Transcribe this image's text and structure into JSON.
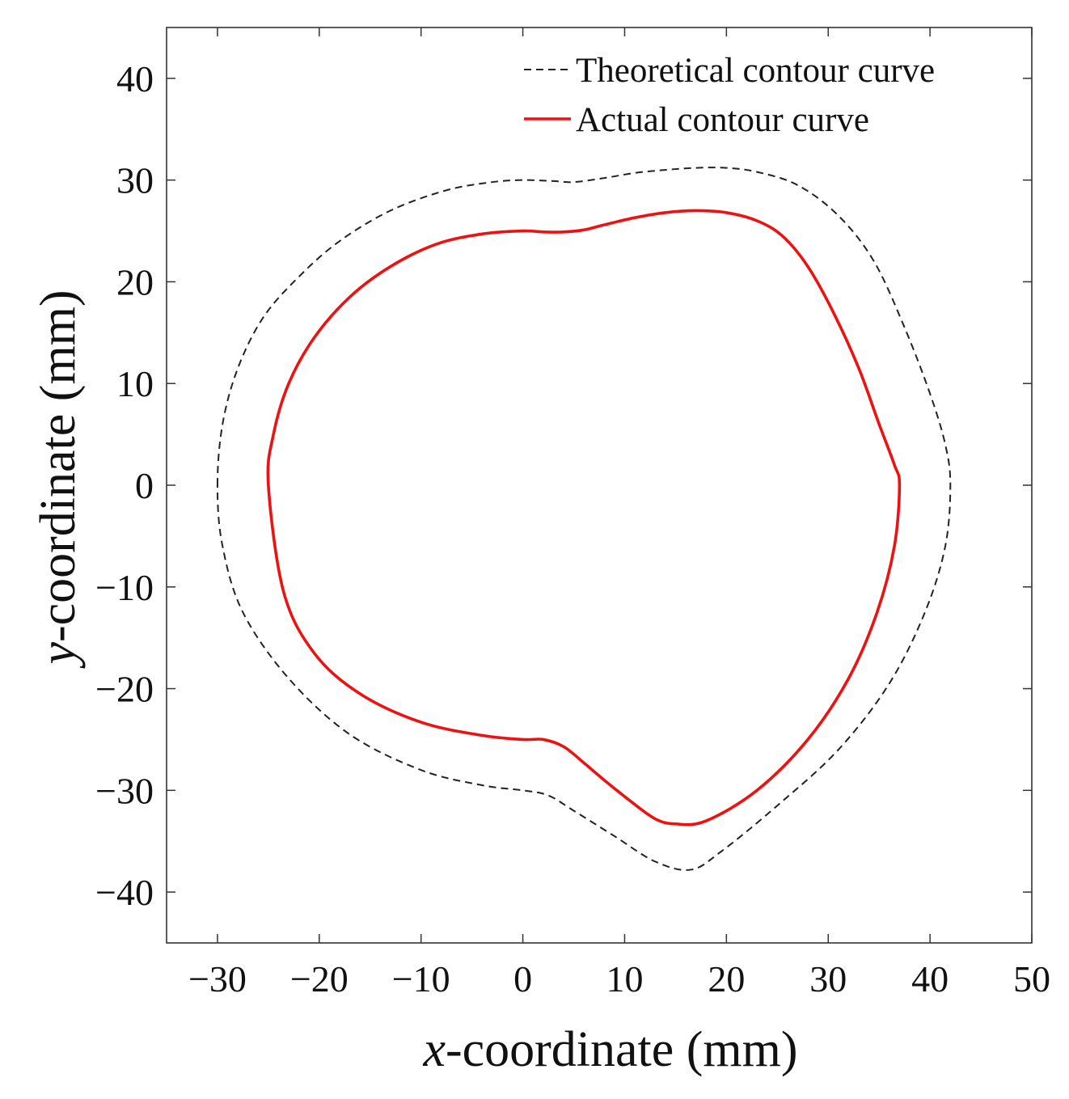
{
  "chart_data": {
    "type": "line",
    "title": "",
    "xlabel": "-coordinate (mm)",
    "xlabel_var": "x",
    "ylabel": "-coordinate (mm)",
    "ylabel_var": "y",
    "xlim": [
      -35,
      50
    ],
    "ylim": [
      -45,
      45
    ],
    "xticks": [
      -30,
      -20,
      -10,
      0,
      10,
      20,
      30,
      40,
      50
    ],
    "yticks": [
      40,
      30,
      20,
      10,
      0,
      -10,
      -20,
      -30,
      -40
    ],
    "xtick_labels": [
      "−30",
      "−20",
      "−10",
      "0",
      "10",
      "20",
      "30",
      "40",
      "50"
    ],
    "ytick_labels": [
      "40",
      "30",
      "20",
      "10",
      "0",
      "−10",
      "−20",
      "−30",
      "−40"
    ],
    "grid": false,
    "legend_position": "top-right",
    "series": [
      {
        "name": "Theoretical contour curve",
        "style": "dashed",
        "color": "#222222",
        "x": [
          -30,
          -29.5,
          -28,
          -25.5,
          -22,
          -18,
          -13,
          -7.5,
          -3,
          0,
          3,
          5,
          8,
          11,
          14,
          17,
          20,
          23,
          27,
          31,
          34.5,
          37.5,
          40,
          41.5,
          42,
          41.5,
          39.5,
          36,
          31,
          25,
          19.5,
          16.5,
          13,
          9,
          5,
          2.5,
          0,
          -4,
          -10,
          -17,
          -23,
          -27.5,
          -29.5,
          -30
        ],
        "y": [
          0,
          6,
          11.5,
          16.5,
          20.5,
          24,
          27,
          29,
          29.8,
          30,
          29.9,
          29.8,
          30.2,
          30.7,
          31,
          31.2,
          31.2,
          30.8,
          29.5,
          26.5,
          22,
          15.5,
          9,
          4,
          0,
          -6,
          -12.5,
          -19.5,
          -26,
          -31.5,
          -36,
          -37.8,
          -37,
          -34.5,
          -32,
          -30.5,
          -30,
          -29.5,
          -28,
          -24.5,
          -19,
          -12.5,
          -6,
          0
        ]
      },
      {
        "name": "Actual contour curve",
        "style": "solid",
        "color": "#ee1111",
        "x": [
          -25,
          -24.5,
          -23,
          -20.5,
          -17,
          -13,
          -8.5,
          -4,
          0,
          2,
          4,
          6,
          8,
          11,
          14,
          17,
          20,
          23,
          25.5,
          28,
          30.5,
          33,
          35,
          36.5,
          37,
          36.5,
          34.8,
          32,
          28,
          23,
          18,
          15,
          13,
          10.5,
          8,
          6,
          4,
          2,
          0,
          -4,
          -10,
          -16,
          -20.5,
          -23.5,
          -25
        ],
        "y": [
          0,
          5,
          10,
          14.5,
          18.5,
          21.5,
          23.7,
          24.7,
          25,
          24.9,
          24.9,
          25.1,
          25.6,
          26.3,
          26.8,
          27,
          26.8,
          26,
          24.5,
          21.5,
          17,
          11.5,
          6,
          2,
          0,
          -6,
          -12.5,
          -19,
          -25,
          -30,
          -33,
          -33.3,
          -32.8,
          -31,
          -29,
          -27.3,
          -25.7,
          -25,
          -25,
          -24.6,
          -23.3,
          -20.5,
          -16.5,
          -10.5,
          0
        ]
      }
    ]
  }
}
